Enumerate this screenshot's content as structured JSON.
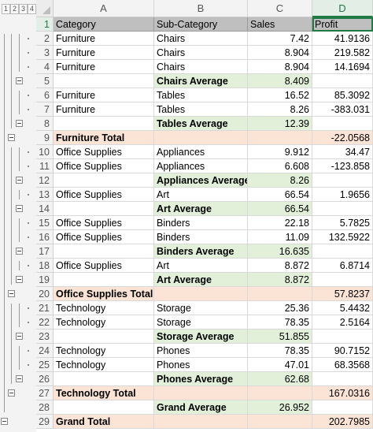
{
  "outline_levels": [
    "1",
    "2",
    "3",
    "4"
  ],
  "columns": [
    "A",
    "B",
    "C",
    "D"
  ],
  "selected_column": "D",
  "rows": [
    {
      "n": "1",
      "a": "Category",
      "b": "Sub-Category",
      "c": "Sales",
      "d": "Profit",
      "kind": "header"
    },
    {
      "n": "2",
      "a": "Furniture",
      "b": "Chairs",
      "c": "7.42",
      "d": "41.9136",
      "kind": "data"
    },
    {
      "n": "3",
      "a": "Furniture",
      "b": "Chairs",
      "c": "8.904",
      "d": "219.582",
      "kind": "data"
    },
    {
      "n": "4",
      "a": "Furniture",
      "b": "Chairs",
      "c": "8.904",
      "d": "14.1694",
      "kind": "data"
    },
    {
      "n": "5",
      "a": "",
      "b": "Chairs Average",
      "c": "8.409",
      "d": "",
      "kind": "avg"
    },
    {
      "n": "6",
      "a": "Furniture",
      "b": "Tables",
      "c": "16.52",
      "d": "85.3092",
      "kind": "data"
    },
    {
      "n": "7",
      "a": "Furniture",
      "b": "Tables",
      "c": "8.26",
      "d": "-383.031",
      "kind": "data"
    },
    {
      "n": "8",
      "a": "",
      "b": "Tables Average",
      "c": "12.39",
      "d": "",
      "kind": "avg"
    },
    {
      "n": "9",
      "a": "Furniture Total",
      "b": "",
      "c": "",
      "d": "-22.0568",
      "kind": "total"
    },
    {
      "n": "10",
      "a": "Office Supplies",
      "b": "Appliances",
      "c": "9.912",
      "d": "34.47",
      "kind": "data"
    },
    {
      "n": "11",
      "a": "Office Supplies",
      "b": "Appliances",
      "c": "6.608",
      "d": "-123.858",
      "kind": "data"
    },
    {
      "n": "12",
      "a": "",
      "b": "Appliances Average",
      "c": "8.26",
      "d": "",
      "kind": "avg"
    },
    {
      "n": "13",
      "a": "Office Supplies",
      "b": "Art",
      "c": "66.54",
      "d": "1.9656",
      "kind": "data"
    },
    {
      "n": "14",
      "a": "",
      "b": "Art Average",
      "c": "66.54",
      "d": "",
      "kind": "avg"
    },
    {
      "n": "15",
      "a": "Office Supplies",
      "b": "Binders",
      "c": "22.18",
      "d": "5.7825",
      "kind": "data"
    },
    {
      "n": "16",
      "a": "Office Supplies",
      "b": "Binders",
      "c": "11.09",
      "d": "132.5922",
      "kind": "data"
    },
    {
      "n": "17",
      "a": "",
      "b": "Binders Average",
      "c": "16.635",
      "d": "",
      "kind": "avg"
    },
    {
      "n": "18",
      "a": "Office Supplies",
      "b": "Art",
      "c": "8.872",
      "d": "6.8714",
      "kind": "data"
    },
    {
      "n": "19",
      "a": "",
      "b": "Art Average",
      "c": "8.872",
      "d": "",
      "kind": "avg"
    },
    {
      "n": "20",
      "a": "Office Supplies Total",
      "b": "",
      "c": "",
      "d": "57.8237",
      "kind": "total"
    },
    {
      "n": "21",
      "a": "Technology",
      "b": "Storage",
      "c": "25.36",
      "d": "5.4432",
      "kind": "data"
    },
    {
      "n": "22",
      "a": "Technology",
      "b": "Storage",
      "c": "78.35",
      "d": "2.5164",
      "kind": "data"
    },
    {
      "n": "23",
      "a": "",
      "b": "Storage Average",
      "c": "51.855",
      "d": "",
      "kind": "avg"
    },
    {
      "n": "24",
      "a": "Technology",
      "b": "Phones",
      "c": "78.35",
      "d": "90.7152",
      "kind": "data"
    },
    {
      "n": "25",
      "a": "Technology",
      "b": "Phones",
      "c": "47.01",
      "d": "68.3568",
      "kind": "data"
    },
    {
      "n": "26",
      "a": "",
      "b": "Phones Average",
      "c": "62.68",
      "d": "",
      "kind": "avg"
    },
    {
      "n": "27",
      "a": "Technology Total",
      "b": "",
      "c": "",
      "d": "167.0316",
      "kind": "total"
    },
    {
      "n": "28",
      "a": "",
      "b": "Grand Average",
      "c": "26.952",
      "d": "",
      "kind": "avg"
    },
    {
      "n": "29",
      "a": "Grand Total",
      "b": "",
      "c": "",
      "d": "202.7985",
      "kind": "total"
    }
  ]
}
